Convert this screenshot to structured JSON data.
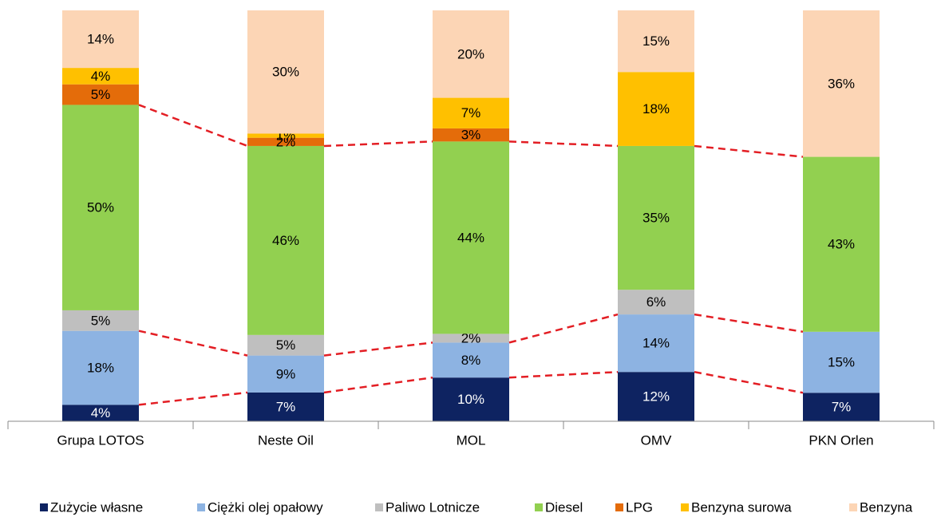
{
  "chart_data": {
    "type": "stacked_bar_100",
    "categories": [
      "Grupa LOTOS",
      "Neste Oil",
      "MOL",
      "OMV",
      "PKN Orlen"
    ],
    "series": [
      {
        "name": "Zużycie własne",
        "color": "#0e2361",
        "values": [
          4,
          7,
          10,
          12,
          7
        ],
        "value_labels": [
          "4%",
          "7%",
          "10%",
          "12%",
          "7%"
        ]
      },
      {
        "name": "Ciężki olej opałowy",
        "color": "#8db3e2",
        "values": [
          18,
          9,
          8,
          14,
          15
        ],
        "value_labels": [
          "18%",
          "9%",
          "8%",
          "14%",
          "15%"
        ]
      },
      {
        "name": "Paliwo Lotnicze",
        "color": "#bfbfbf",
        "values": [
          5,
          5,
          2,
          6,
          null
        ],
        "value_labels": [
          "5%",
          "5%",
          "2%",
          "6%",
          null
        ]
      },
      {
        "name": "Diesel",
        "color": "#92d050",
        "values": [
          50,
          46,
          44,
          35,
          43
        ],
        "value_labels": [
          "50%",
          "46%",
          "44%",
          "35%",
          "43%"
        ]
      },
      {
        "name": "LPG",
        "color": "#e46c0a",
        "values": [
          5,
          2,
          3,
          null,
          null
        ],
        "value_labels": [
          "5%",
          "2%",
          "3%",
          null,
          null
        ]
      },
      {
        "name": "Benzyna surowa",
        "color": "#ffc000",
        "values": [
          4,
          1,
          7,
          18,
          null
        ],
        "value_labels": [
          "4%",
          "1%",
          "7%",
          "18%",
          null
        ]
      },
      {
        "name": "Benzyna",
        "color": "#fcd5b5",
        "values": [
          14,
          30,
          20,
          15,
          36
        ],
        "value_labels": [
          "14%",
          "30%",
          "20%",
          "15%",
          "36%"
        ]
      }
    ]
  }
}
